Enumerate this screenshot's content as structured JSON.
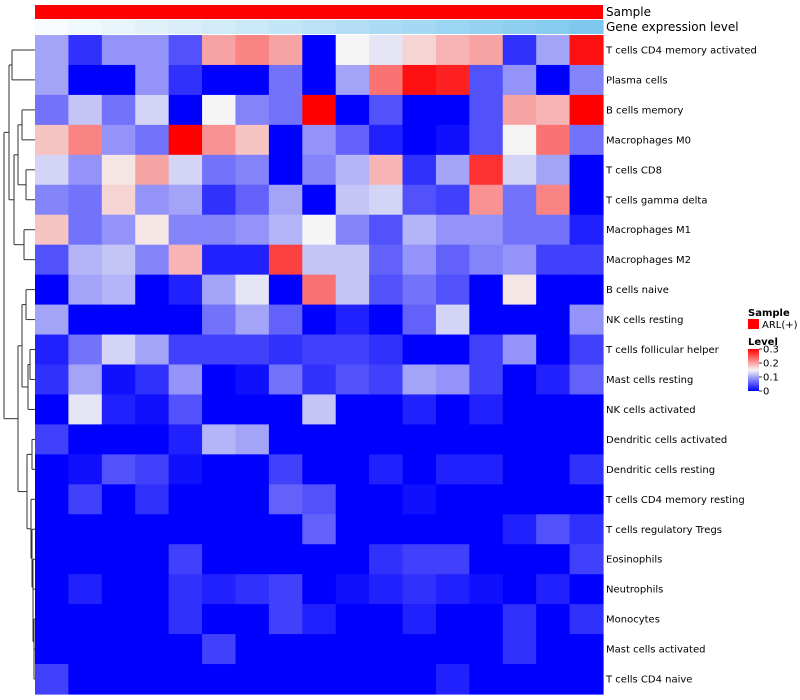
{
  "chart_data": {
    "type": "heatmap",
    "annotation_tracks": [
      "Sample",
      "Gene expression level"
    ],
    "annotation_colors": {
      "sample": "#ff0000",
      "expr_low": "#f7fbfd",
      "expr_high": "#7ec8ef"
    },
    "rows": [
      "T cells CD4 memory activated",
      "Plasma cells",
      "B cells memory",
      "Macrophages M0",
      "T cells CD8",
      "T cells gamma delta",
      "Macrophages M1",
      "Macrophages M2",
      "B cells naive",
      "NK cells resting",
      "T cells follicular helper",
      "Mast cells resting",
      "NK cells activated",
      "Dendritic cells activated",
      "Dendritic cells resting",
      "T cells CD4 memory resting",
      "T cells regulatory  Tregs",
      "Eosinophils",
      "Neutrophils",
      "Monocytes",
      "Mast cells activated",
      "T cells CD4 naive"
    ],
    "values": [
      [
        0.1,
        0.03,
        0.09,
        0.09,
        0.05,
        0.2,
        0.22,
        0.2,
        0.0,
        0.15,
        0.14,
        0.17,
        0.19,
        0.2,
        0.03,
        0.1,
        0.29
      ],
      [
        0.1,
        0.0,
        0.0,
        0.09,
        0.03,
        0.0,
        0.0,
        0.07,
        0.0,
        0.1,
        0.23,
        0.29,
        0.28,
        0.05,
        0.09,
        0.0,
        0.08
      ],
      [
        0.07,
        0.12,
        0.07,
        0.13,
        0.0,
        0.15,
        0.08,
        0.07,
        0.3,
        0.0,
        0.05,
        0.0,
        0.0,
        0.05,
        0.2,
        0.19,
        0.3
      ],
      [
        0.18,
        0.22,
        0.09,
        0.07,
        0.3,
        0.21,
        0.18,
        0.0,
        0.09,
        0.06,
        0.02,
        0.0,
        0.01,
        0.05,
        0.15,
        0.23,
        0.07
      ],
      [
        0.13,
        0.09,
        0.16,
        0.2,
        0.13,
        0.07,
        0.08,
        0.0,
        0.08,
        0.11,
        0.19,
        0.03,
        0.1,
        0.27,
        0.13,
        0.1,
        0.0
      ],
      [
        0.08,
        0.07,
        0.17,
        0.09,
        0.1,
        0.03,
        0.06,
        0.1,
        0.0,
        0.12,
        0.13,
        0.05,
        0.04,
        0.21,
        0.07,
        0.22,
        0.0
      ],
      [
        0.18,
        0.07,
        0.09,
        0.16,
        0.08,
        0.08,
        0.09,
        0.11,
        0.15,
        0.08,
        0.05,
        0.11,
        0.09,
        0.09,
        0.07,
        0.07,
        0.02
      ],
      [
        0.05,
        0.11,
        0.12,
        0.08,
        0.19,
        0.02,
        0.02,
        0.26,
        0.12,
        0.12,
        0.06,
        0.09,
        0.06,
        0.08,
        0.09,
        0.04,
        0.04
      ],
      [
        0.0,
        0.1,
        0.11,
        0.0,
        0.02,
        0.1,
        0.14,
        0.0,
        0.23,
        0.12,
        0.05,
        0.07,
        0.05,
        0.0,
        0.16,
        0.0,
        0.0
      ],
      [
        0.1,
        0.0,
        0.0,
        0.0,
        0.0,
        0.07,
        0.1,
        0.06,
        0.0,
        0.02,
        0.0,
        0.06,
        0.13,
        0.0,
        0.0,
        0.0,
        0.09
      ],
      [
        0.02,
        0.07,
        0.13,
        0.1,
        0.04,
        0.04,
        0.04,
        0.03,
        0.04,
        0.04,
        0.03,
        0.0,
        0.0,
        0.04,
        0.09,
        0.0,
        0.04
      ],
      [
        0.03,
        0.1,
        0.01,
        0.03,
        0.09,
        0.0,
        0.01,
        0.07,
        0.03,
        0.05,
        0.04,
        0.1,
        0.09,
        0.04,
        0.0,
        0.02,
        0.06
      ],
      [
        0.0,
        0.14,
        0.02,
        0.01,
        0.05,
        0.0,
        0.0,
        0.0,
        0.12,
        0.0,
        0.0,
        0.02,
        0.0,
        0.02,
        0.0,
        0.0,
        0.0
      ],
      [
        0.04,
        0.0,
        0.0,
        0.0,
        0.02,
        0.11,
        0.1,
        0.0,
        0.0,
        0.0,
        0.0,
        0.0,
        0.0,
        0.0,
        0.0,
        0.0,
        0.0
      ],
      [
        0.0,
        0.01,
        0.05,
        0.04,
        0.01,
        0.0,
        0.0,
        0.04,
        0.0,
        0.0,
        0.02,
        0.0,
        0.02,
        0.02,
        0.0,
        0.0,
        0.03
      ],
      [
        0.0,
        0.04,
        0.0,
        0.03,
        0.0,
        0.0,
        0.0,
        0.06,
        0.05,
        0.0,
        0.0,
        0.01,
        0.0,
        0.0,
        0.0,
        0.0,
        0.0
      ],
      [
        0.0,
        0.0,
        0.0,
        0.0,
        0.0,
        0.0,
        0.0,
        0.0,
        0.06,
        0.0,
        0.0,
        0.0,
        0.0,
        0.0,
        0.02,
        0.05,
        0.03
      ],
      [
        0.0,
        0.0,
        0.0,
        0.0,
        0.04,
        0.0,
        0.0,
        0.0,
        0.0,
        0.0,
        0.03,
        0.04,
        0.04,
        0.0,
        0.0,
        0.0,
        0.04
      ],
      [
        0.0,
        0.02,
        0.0,
        0.0,
        0.03,
        0.02,
        0.03,
        0.04,
        0.0,
        0.01,
        0.02,
        0.03,
        0.02,
        0.01,
        0.0,
        0.02,
        0.0
      ],
      [
        0.0,
        0.0,
        0.0,
        0.0,
        0.03,
        0.0,
        0.0,
        0.04,
        0.02,
        0.0,
        0.0,
        0.02,
        0.0,
        0.0,
        0.03,
        0.0,
        0.03
      ],
      [
        0.0,
        0.0,
        0.0,
        0.0,
        0.0,
        0.04,
        0.0,
        0.0,
        0.0,
        0.0,
        0.0,
        0.0,
        0.0,
        0.0,
        0.03,
        0.0,
        0.0
      ],
      [
        0.04,
        0.0,
        0.0,
        0.0,
        0.0,
        0.0,
        0.0,
        0.0,
        0.0,
        0.0,
        0.0,
        0.0,
        0.02,
        0.0,
        0.0,
        0.0,
        0.0
      ]
    ],
    "color_scale": {
      "range": [
        0,
        0.3
      ],
      "stops": [
        {
          "value": 0,
          "color": "#0000ff"
        },
        {
          "value": 0.15,
          "color": "#f5f5f5"
        },
        {
          "value": 0.3,
          "color": "#ff0000"
        }
      ]
    },
    "legend": {
      "sample_title": "Sample",
      "sample_entry": "ARL(+)",
      "level_title": "Level",
      "ticks": [
        "0.3",
        "0.2",
        "0.1",
        "0"
      ],
      "tick_values": [
        0.3,
        0.2,
        0.1,
        0
      ],
      "placement": "right"
    }
  }
}
